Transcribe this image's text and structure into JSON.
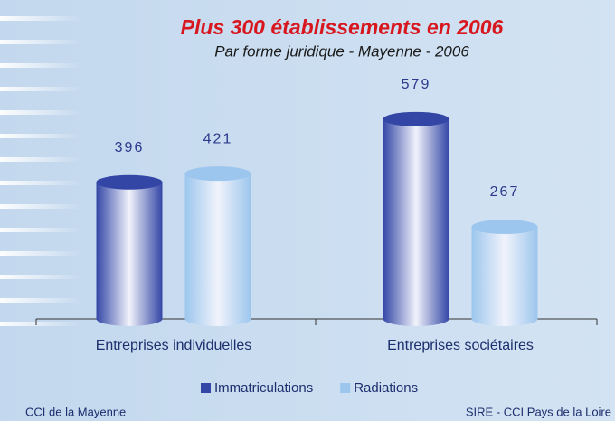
{
  "chart_data": {
    "type": "bar",
    "title": "Plus 300 établissements en 2006",
    "subtitle": "Par forme juridique - Mayenne - 2006",
    "categories": [
      "Entreprises individuelles",
      "Entreprises sociétaires"
    ],
    "series": [
      {
        "name": "Immatriculations",
        "color": "#3346a6",
        "values": [
          396,
          579
        ]
      },
      {
        "name": "Radiations",
        "color": "#9cc6ee",
        "values": [
          421,
          267
        ]
      }
    ],
    "legend": "bottom",
    "footer_left": "CCI de la Mayenne",
    "footer_right": "SIRE - CCI Pays de la Loire"
  }
}
